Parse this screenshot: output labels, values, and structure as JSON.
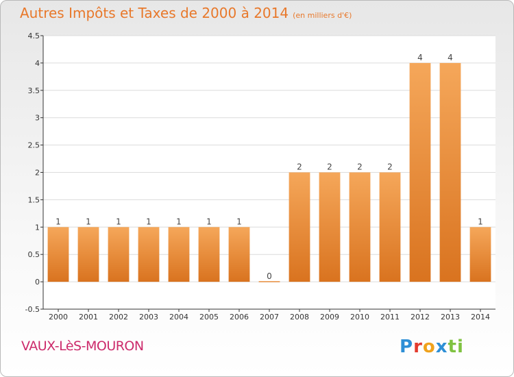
{
  "title": "Autres Impôts et Taxes de 2000 à 2014",
  "unit_label": "(en milliers d'€)",
  "commune": "VAUX-LèS-MOURON",
  "logo": {
    "p": "P",
    "r": "r",
    "o": "o",
    "x": "x",
    "i": "i",
    "t": "ti"
  },
  "colors": {
    "bar_top": "#f5a75a",
    "bar_bottom": "#d9731f",
    "title": "#e8782a",
    "commune": "#cc2a6b"
  },
  "chart_data": {
    "type": "bar",
    "title": "Autres Impôts et Taxes de 2000 à 2014",
    "subtitle": "(en milliers d'€)",
    "categories": [
      "2000",
      "2001",
      "2002",
      "2003",
      "2004",
      "2005",
      "2006",
      "2007",
      "2008",
      "2009",
      "2010",
      "2011",
      "2012",
      "2013",
      "2014"
    ],
    "values": [
      1,
      1,
      1,
      1,
      1,
      1,
      1,
      0,
      2,
      2,
      2,
      2,
      4,
      4,
      1
    ],
    "data_labels": [
      "1",
      "1",
      "1",
      "1",
      "1",
      "1",
      "1",
      "0",
      "2",
      "2",
      "2",
      "2",
      "4",
      "4",
      "1"
    ],
    "ylim": [
      -0.5,
      4.5
    ],
    "yticks": [
      -0.5,
      0,
      0.5,
      1,
      1.5,
      2,
      2.5,
      3,
      3.5,
      4,
      4.5
    ],
    "ytick_labels": [
      "-0.5",
      "0",
      "0.5",
      "1",
      "1.5",
      "2",
      "2.5",
      "3",
      "3.5",
      "4",
      "4.5"
    ],
    "grid": true
  }
}
